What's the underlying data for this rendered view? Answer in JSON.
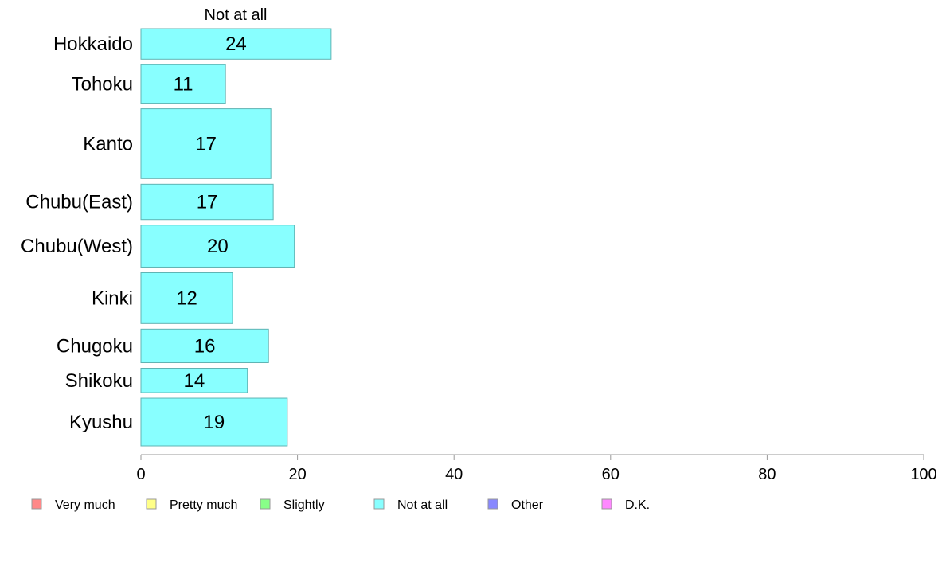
{
  "chart_data": {
    "type": "bar",
    "orientation": "horizontal",
    "series_title": "Not at all",
    "categories": [
      "Hokkaido",
      "Tohoku",
      "Kanto",
      "Chubu(East)",
      "Chubu(West)",
      "Kinki",
      "Chugoku",
      "Shikoku",
      "Kyushu"
    ],
    "values": [
      24.3,
      10.8,
      16.6,
      16.9,
      19.6,
      11.7,
      16.3,
      13.6,
      18.7
    ],
    "value_labels": [
      "24",
      "11",
      "17",
      "17",
      "20",
      "12",
      "16",
      "14",
      "19"
    ],
    "category_weights": [
      0.69,
      0.87,
      1.58,
      0.8,
      0.95,
      1.15,
      0.76,
      0.55,
      1.08
    ],
    "xlim": [
      0,
      100
    ],
    "xticks": [
      0,
      20,
      40,
      60,
      80,
      100
    ],
    "grid": false,
    "bar_color": "#88ffff",
    "bar_edge_color": "#5fb3b3",
    "legend": {
      "position": "bottom",
      "items": [
        {
          "label": "Very much",
          "color": "#ff8888"
        },
        {
          "label": "Pretty much",
          "color": "#ffff88"
        },
        {
          "label": "Slightly",
          "color": "#88ff88"
        },
        {
          "label": "Not at all",
          "color": "#88ffff"
        },
        {
          "label": "Other",
          "color": "#8888ff"
        },
        {
          "label": "D.K.",
          "color": "#ff88ff"
        }
      ]
    }
  }
}
